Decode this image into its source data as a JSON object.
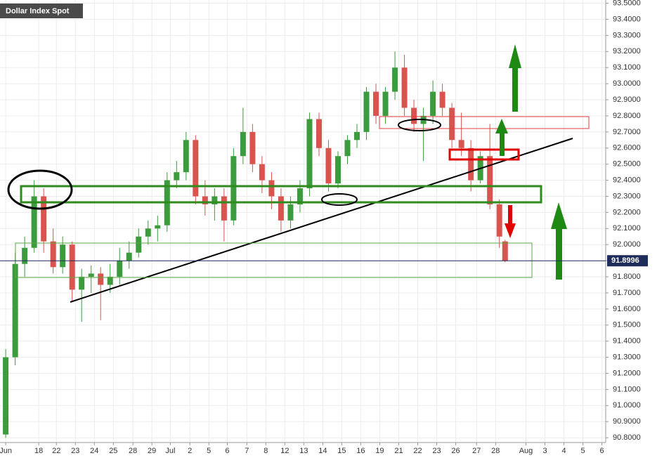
{
  "chart_data": {
    "type": "candlestick",
    "title": "Dollar Index Spot",
    "x": [
      0,
      0.5,
      1,
      1.5,
      2,
      2.5,
      3,
      3.5,
      4,
      4.5,
      5,
      5.5,
      6,
      6.5,
      7,
      7.5,
      8,
      8.5,
      9,
      9.5,
      10,
      10.5,
      11,
      11.5,
      12,
      12.5,
      13,
      13.5,
      14,
      14.5,
      15,
      15.5,
      16,
      16.5,
      17,
      17.5,
      18,
      18.5,
      19,
      19.5,
      20,
      20.5,
      21,
      21.5,
      22,
      22.5,
      23,
      23.5,
      24,
      24.5,
      25,
      25.5,
      26,
      26.3
    ],
    "open": [
      90.82,
      91.3,
      91.88,
      91.98,
      92.3,
      92.02,
      91.86,
      92.0,
      91.72,
      91.8,
      91.82,
      91.75,
      91.8,
      91.9,
      91.95,
      92.05,
      92.1,
      92.12,
      92.4,
      92.45,
      92.65,
      92.3,
      92.25,
      92.3,
      92.15,
      92.55,
      92.7,
      92.5,
      92.4,
      92.3,
      92.15,
      92.25,
      92.35,
      92.78,
      92.6,
      92.38,
      92.55,
      92.65,
      92.7,
      92.95,
      92.8,
      92.95,
      93.1,
      92.85,
      92.75,
      92.8,
      92.95,
      92.85,
      92.65,
      92.6,
      92.4,
      92.55,
      92.25,
      92.02
    ],
    "high": [
      91.35,
      91.95,
      92.05,
      92.4,
      92.35,
      92.1,
      92.05,
      92.02,
      91.85,
      91.87,
      91.86,
      91.88,
      91.98,
      92.02,
      92.1,
      92.15,
      92.18,
      92.45,
      92.52,
      92.7,
      92.68,
      92.4,
      92.35,
      92.35,
      92.6,
      92.85,
      92.75,
      92.55,
      92.45,
      92.35,
      92.3,
      92.4,
      92.82,
      92.82,
      92.65,
      92.58,
      92.68,
      92.75,
      92.98,
      93.0,
      92.98,
      93.2,
      93.18,
      92.9,
      92.85,
      93.02,
      93.0,
      92.88,
      92.82,
      92.65,
      92.58,
      92.75,
      92.28,
      92.03
    ],
    "low": [
      90.8,
      91.25,
      91.8,
      91.95,
      91.95,
      91.82,
      91.82,
      91.65,
      91.52,
      91.7,
      91.53,
      91.7,
      91.75,
      91.85,
      91.92,
      92.0,
      92.02,
      92.08,
      92.35,
      92.4,
      92.25,
      92.18,
      92.15,
      92.02,
      92.12,
      92.5,
      92.45,
      92.32,
      92.22,
      92.08,
      92.1,
      92.2,
      92.3,
      92.55,
      92.33,
      92.35,
      92.5,
      92.6,
      92.65,
      92.75,
      92.75,
      92.9,
      92.8,
      92.7,
      92.52,
      92.75,
      92.8,
      92.6,
      92.55,
      92.33,
      92.38,
      92.22,
      91.98,
      91.89
    ],
    "close": [
      91.3,
      91.88,
      91.98,
      92.3,
      92.02,
      91.86,
      92.0,
      91.72,
      91.8,
      91.82,
      91.75,
      91.8,
      91.9,
      91.95,
      92.05,
      92.1,
      92.12,
      92.4,
      92.45,
      92.65,
      92.3,
      92.25,
      92.3,
      92.15,
      92.55,
      92.7,
      92.5,
      92.4,
      92.3,
      92.15,
      92.25,
      92.35,
      92.78,
      92.6,
      92.38,
      92.55,
      92.65,
      92.7,
      92.95,
      92.8,
      92.95,
      93.1,
      92.85,
      92.75,
      92.8,
      92.95,
      92.85,
      92.65,
      92.6,
      92.4,
      92.55,
      92.25,
      92.05,
      91.9
    ],
    "up_color": "#3c9b3c",
    "down_color": "#d9534f",
    "last_price": 91.8996,
    "xlim": [
      -0.3,
      31.6
    ],
    "xticks": [
      {
        "value": 0,
        "label": "Jun"
      },
      {
        "value": 1.74,
        "label": "18"
      },
      {
        "value": 2.67,
        "label": "22"
      },
      {
        "value": 3.67,
        "label": "23"
      },
      {
        "value": 4.67,
        "label": "24"
      },
      {
        "value": 5.67,
        "label": "25"
      },
      {
        "value": 6.7,
        "label": "28"
      },
      {
        "value": 7.7,
        "label": "29"
      },
      {
        "value": 8.67,
        "label": "Jul"
      },
      {
        "value": 9.7,
        "label": "2"
      },
      {
        "value": 10.7,
        "label": "5"
      },
      {
        "value": 11.67,
        "label": "6"
      },
      {
        "value": 12.7,
        "label": "7"
      },
      {
        "value": 13.7,
        "label": "8"
      },
      {
        "value": 14.7,
        "label": "12"
      },
      {
        "value": 15.7,
        "label": "13"
      },
      {
        "value": 16.7,
        "label": "14"
      },
      {
        "value": 17.7,
        "label": "15"
      },
      {
        "value": 18.7,
        "label": "16"
      },
      {
        "value": 19.7,
        "label": "19"
      },
      {
        "value": 20.7,
        "label": "21"
      },
      {
        "value": 21.7,
        "label": "22"
      },
      {
        "value": 22.7,
        "label": "23"
      },
      {
        "value": 23.7,
        "label": "26"
      },
      {
        "value": 24.8,
        "label": "27"
      },
      {
        "value": 25.8,
        "label": "28"
      },
      {
        "value": 27.4,
        "label": "Aug"
      },
      {
        "value": 28.4,
        "label": "3"
      },
      {
        "value": 29.4,
        "label": "4"
      },
      {
        "value": 30.4,
        "label": "5"
      },
      {
        "value": 31.4,
        "label": "6"
      }
    ],
    "ylim": [
      90.77,
      93.52
    ],
    "yticks": [
      {
        "value": 93.5,
        "label": "93.5000"
      },
      {
        "value": 93.4,
        "label": "93.4000"
      },
      {
        "value": 93.3,
        "label": "93.3000"
      },
      {
        "value": 93.2,
        "label": "93.2000"
      },
      {
        "value": 93.1,
        "label": "93.1000"
      },
      {
        "value": 93.0,
        "label": "93.0000"
      },
      {
        "value": 92.9,
        "label": "92.9000"
      },
      {
        "value": 92.8,
        "label": "92.8000"
      },
      {
        "value": 92.7,
        "label": "92.7000"
      },
      {
        "value": 92.6,
        "label": "92.6000"
      },
      {
        "value": 92.5,
        "label": "92.5000"
      },
      {
        "value": 92.4,
        "label": "92.4000"
      },
      {
        "value": 92.3,
        "label": "92.3000"
      },
      {
        "value": 92.2,
        "label": "92.2000"
      },
      {
        "value": 92.1,
        "label": "92.1000"
      },
      {
        "value": 92.0,
        "label": "92.0000"
      },
      {
        "value": 91.9,
        "label": "91.9000"
      },
      {
        "value": 91.8,
        "label": "91.8000"
      },
      {
        "value": 91.7,
        "label": "91.7000"
      },
      {
        "value": 91.6,
        "label": "91.6000"
      },
      {
        "value": 91.5,
        "label": "91.5000"
      },
      {
        "value": 91.4,
        "label": "91.4000"
      },
      {
        "value": 91.3,
        "label": "91.3000"
      },
      {
        "value": 91.2,
        "label": "91.2000"
      },
      {
        "value": 91.1,
        "label": "91.1000"
      },
      {
        "value": 91.0,
        "label": "91.0000"
      },
      {
        "value": 90.9,
        "label": "90.9000"
      },
      {
        "value": 90.8,
        "label": "90.8000"
      }
    ],
    "grid": true
  }
}
